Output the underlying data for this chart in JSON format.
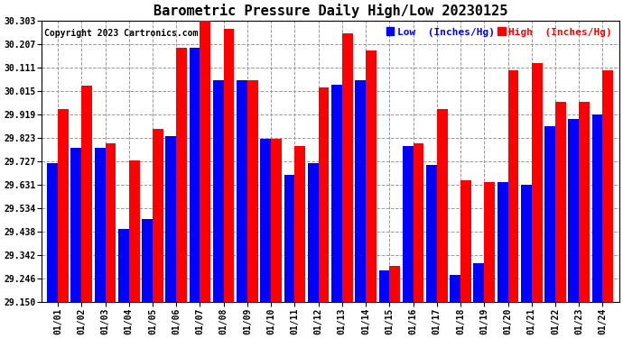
{
  "title": "Barometric Pressure Daily High/Low 20230125",
  "copyright": "Copyright 2023 Cartronics.com",
  "legend_low_label": "Low  (Inches/Hg)",
  "legend_high_label": "High  (Inches/Hg)",
  "ylim": [
    29.15,
    30.303
  ],
  "yticks": [
    29.15,
    29.246,
    29.342,
    29.438,
    29.534,
    29.631,
    29.727,
    29.823,
    29.919,
    30.015,
    30.111,
    30.207,
    30.303
  ],
  "dates": [
    "01/01",
    "01/02",
    "01/03",
    "01/04",
    "01/05",
    "01/06",
    "01/07",
    "01/08",
    "01/09",
    "01/10",
    "01/11",
    "01/12",
    "01/13",
    "01/14",
    "01/15",
    "01/16",
    "01/17",
    "01/18",
    "01/19",
    "01/20",
    "01/21",
    "01/22",
    "01/23",
    "01/24"
  ],
  "high": [
    29.94,
    30.035,
    29.8,
    29.73,
    29.86,
    30.19,
    30.31,
    30.27,
    30.06,
    29.82,
    29.79,
    30.03,
    30.25,
    30.18,
    29.3,
    29.8,
    29.94,
    29.65,
    29.64,
    30.1,
    30.13,
    29.97,
    29.97,
    30.1
  ],
  "low": [
    29.72,
    29.78,
    29.78,
    29.45,
    29.49,
    29.83,
    30.19,
    30.06,
    30.06,
    29.82,
    29.67,
    29.72,
    30.04,
    30.06,
    29.28,
    29.79,
    29.71,
    29.26,
    29.31,
    29.64,
    29.63,
    29.87,
    29.9,
    29.92
  ],
  "bar_color_high": "#ff0000",
  "bar_color_low": "#0000ff",
  "bg_color": "#ffffff",
  "grid_color": "#999999",
  "title_fontsize": 11,
  "copyright_fontsize": 7,
  "tick_fontsize": 7,
  "legend_fontsize": 8,
  "figwidth": 6.9,
  "figheight": 3.75,
  "dpi": 100
}
